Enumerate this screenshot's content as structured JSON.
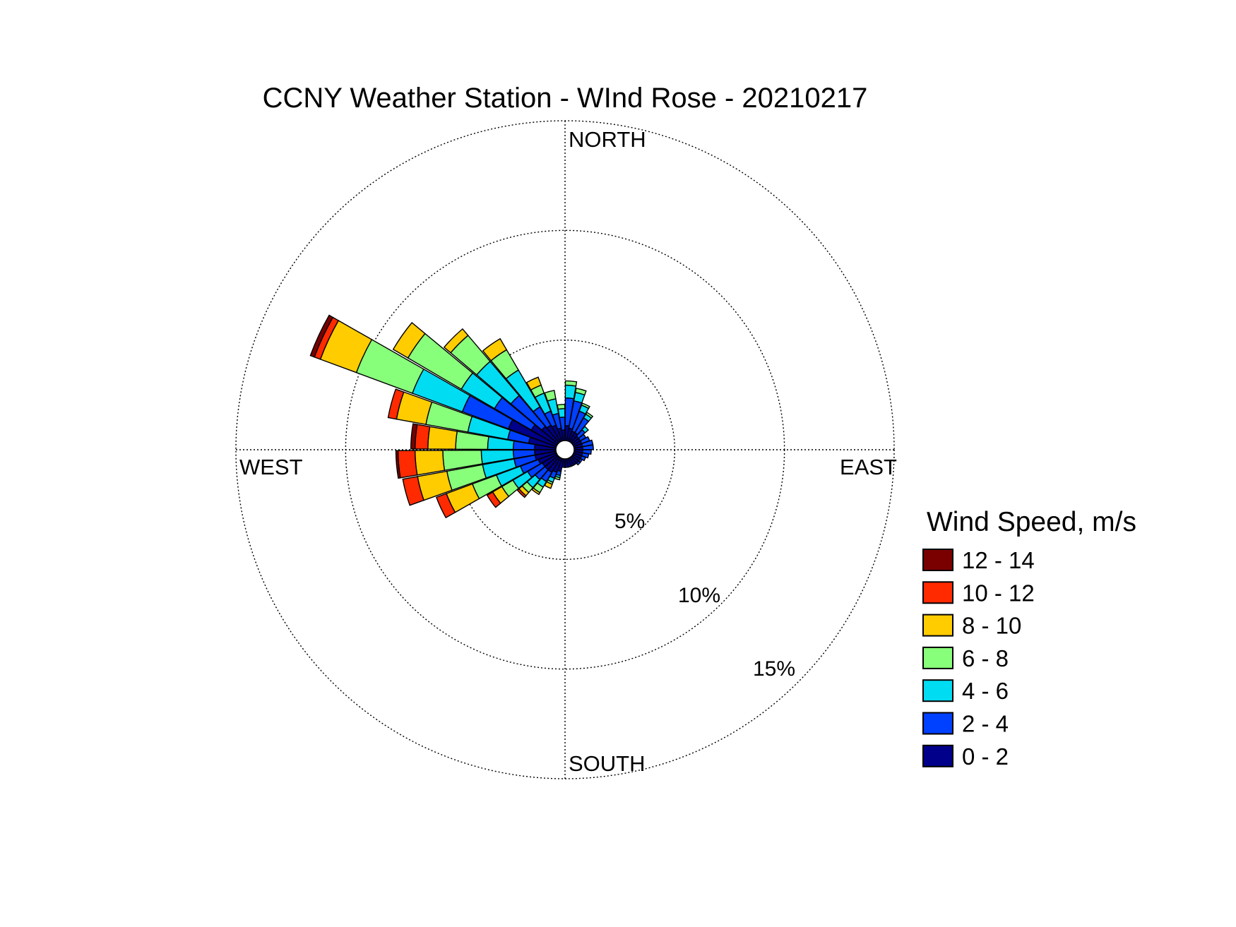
{
  "chart_data": {
    "type": "polar-stacked-bar",
    "title": "CCNY Weather Station - WInd Rose - 20210217",
    "direction_labels": {
      "north": "NORTH",
      "east": "EAST",
      "south": "SOUTH",
      "west": "WEST"
    },
    "radial_ticks": [
      {
        "value": 5,
        "label": "5%"
      },
      {
        "value": 10,
        "label": "10%"
      },
      {
        "value": 15,
        "label": "15%"
      }
    ],
    "radial_max": 15,
    "grid": true,
    "legend": {
      "title": "Wind Speed, m/s",
      "placement": "right",
      "bins": [
        {
          "label": "12 - 14",
          "color": "#7a0000"
        },
        {
          "label": "10 - 12",
          "color": "#ff2a00"
        },
        {
          "label": "8 - 10",
          "color": "#ffcc00"
        },
        {
          "label": "6 - 8",
          "color": "#88ff7a"
        },
        {
          "label": "4 - 6",
          "color": "#00dcf2"
        },
        {
          "label": "2 - 4",
          "color": "#0040ff"
        },
        {
          "label": "0 - 2",
          "color": "#00008a"
        }
      ]
    },
    "speed_order_inner_to_outer": [
      "0 - 2",
      "2 - 4",
      "4 - 6",
      "6 - 8",
      "8 - 10",
      "10 - 12",
      "12 - 14"
    ],
    "sectors": [
      {
        "dir": 5,
        "cum": [
          0.7,
          2.0,
          2.6,
          2.8
        ]
      },
      {
        "dir": 15,
        "cum": [
          0.6,
          1.9,
          2.3,
          2.5
        ]
      },
      {
        "dir": 25,
        "cum": [
          0.5,
          1.5,
          1.8,
          1.9
        ]
      },
      {
        "dir": 35,
        "cum": [
          0.5,
          1.3,
          1.5,
          1.6
        ]
      },
      {
        "dir": 45,
        "cum": [
          0.4,
          0.8,
          1.0
        ]
      },
      {
        "dir": 55,
        "cum": [
          0.4,
          0.7
        ]
      },
      {
        "dir": 65,
        "cum": [
          0.4,
          0.8
        ]
      },
      {
        "dir": 75,
        "cum": [
          0.4,
          0.9
        ]
      },
      {
        "dir": 85,
        "cum": [
          0.4,
          0.9
        ]
      },
      {
        "dir": 95,
        "cum": [
          0.4,
          0.8
        ]
      },
      {
        "dir": 105,
        "cum": [
          0.4,
          0.7
        ]
      },
      {
        "dir": 115,
        "cum": [
          0.4,
          0.6
        ]
      },
      {
        "dir": 125,
        "cum": [
          0.4,
          0.5
        ]
      },
      {
        "dir": 135,
        "cum": [
          0.4,
          0.5
        ]
      },
      {
        "dir": 145,
        "cum": [
          0.4
        ]
      },
      {
        "dir": 155,
        "cum": [
          0.4
        ]
      },
      {
        "dir": 165,
        "cum": [
          0.4
        ]
      },
      {
        "dir": 175,
        "cum": [
          0.4
        ]
      },
      {
        "dir": 185,
        "cum": [
          0.4
        ]
      },
      {
        "dir": 195,
        "cum": [
          0.6,
          0.8,
          0.9,
          1.0
        ]
      },
      {
        "dir": 205,
        "cum": [
          0.7,
          1.0,
          1.2,
          1.3,
          1.5
        ]
      },
      {
        "dir": 215,
        "cum": [
          0.8,
          1.3,
          1.6,
          1.9,
          2.0
        ]
      },
      {
        "dir": 225,
        "cum": [
          0.8,
          1.4,
          1.9,
          2.2,
          2.4,
          2.5
        ]
      },
      {
        "dir": 235,
        "cum": [
          0.8,
          1.6,
          2.4,
          3.0,
          3.5,
          3.8
        ]
      },
      {
        "dir": 245,
        "cum": [
          0.9,
          1.8,
          3.0,
          4.2,
          5.5,
          6.0
        ]
      },
      {
        "dir": 255,
        "cum": [
          1.0,
          2.0,
          3.5,
          5.2,
          6.6,
          7.3
        ]
      },
      {
        "dir": 265,
        "cum": [
          1.0,
          2.0,
          3.5,
          5.3,
          6.6,
          7.4,
          7.5
        ]
      },
      {
        "dir": 275,
        "cum": [
          1.0,
          2.0,
          3.2,
          4.7,
          6.0,
          6.6,
          6.8
        ]
      },
      {
        "dir": 285,
        "cum": [
          1.3,
          2.3,
          4.2,
          6.2,
          7.6,
          8.0
        ]
      },
      {
        "dir": 295,
        "cum": [
          2.4,
          4.7,
          7.2,
          10.0,
          11.8,
          12.1,
          12.3
        ]
      },
      {
        "dir": 305,
        "cum": [
          1.4,
          3.4,
          5.2,
          8.1,
          8.9
        ]
      },
      {
        "dir": 315,
        "cum": [
          1.0,
          2.9,
          5.0,
          6.6,
          7.0
        ]
      },
      {
        "dir": 325,
        "cum": [
          0.9,
          1.9,
          3.9,
          5.0,
          5.6
        ]
      },
      {
        "dir": 335,
        "cum": [
          0.8,
          1.5,
          2.4,
          2.8,
          3.2
        ]
      },
      {
        "dir": 345,
        "cum": [
          0.6,
          1.3,
          2.0,
          2.4
        ]
      },
      {
        "dir": 355,
        "cum": [
          0.5,
          1.1,
          1.5,
          1.7
        ]
      }
    ]
  }
}
